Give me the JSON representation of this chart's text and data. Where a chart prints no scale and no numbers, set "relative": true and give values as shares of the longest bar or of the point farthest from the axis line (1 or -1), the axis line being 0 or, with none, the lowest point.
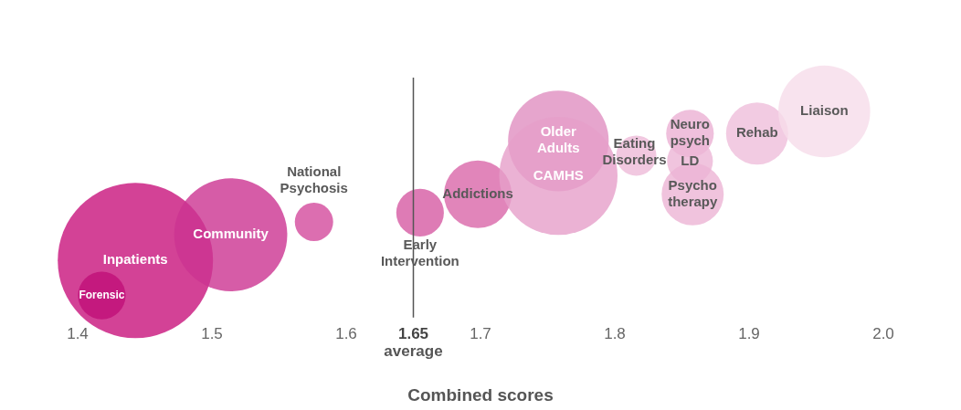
{
  "chart_data": {
    "type": "bubble",
    "xlabel": "Combined scores",
    "relative": true,
    "x": [
      1.443,
      1.418,
      1.514,
      1.576,
      1.655,
      1.698,
      1.758,
      1.758,
      1.816,
      1.856,
      1.856,
      1.858,
      1.906,
      1.956
    ],
    "values": [
      0.19,
      0,
      0.33,
      0.4,
      0.45,
      0.55,
      0.84,
      0.65,
      0.76,
      0.88,
      0.73,
      0.55,
      0.88,
      1
    ],
    "sizes": [
      1,
      0.094,
      0.53,
      0.061,
      0.094,
      0.19,
      0.42,
      0.58,
      0.067,
      0.094,
      0.087,
      0.16,
      0.16,
      0.35
    ],
    "colors": [
      "#c8137c",
      "#c00f78",
      "#cc3391",
      "#d34a9c",
      "#d65aa2",
      "#d967a9",
      "#e08ec0",
      "#e69fc9",
      "#eebad8",
      "#ebb0d3",
      "#ecb5d6",
      "#ecb4d5",
      "#efbedb",
      "#f6dcea"
    ],
    "xlim": [
      1.4,
      2.0
    ],
    "xticks": [
      1.4,
      1.5,
      1.6,
      1.65,
      1.7,
      1.8,
      1.9,
      {
        "value": 2.0,
        "label": "2.0"
      }
    ],
    "ref_lines": [
      {
        "axis": "x",
        "value": 1.65,
        "label": "average",
        "color": "#555555"
      }
    ],
    "grid": false,
    "legend": false,
    "annotations": [
      {
        "text": "Inpatients",
        "x": 1.443,
        "y": 0.19
      },
      {
        "text": "Forensic",
        "x": 1.418,
        "y": 0
      },
      {
        "text": "Community",
        "x": 1.514,
        "y": 0.33
      },
      {
        "text": "National Psychosis",
        "x": 1.576,
        "y": 0.4
      },
      {
        "text": "Early Intervention",
        "x": 1.655,
        "y": 0.45
      },
      {
        "text": "Addictions",
        "x": 1.698,
        "y": 0.55
      },
      {
        "text": "Older Adults",
        "x": 1.758,
        "y": 0.84
      },
      {
        "text": "CAMHS",
        "x": 1.758,
        "y": 0.65
      },
      {
        "text": "Eating Disorders",
        "x": 1.816,
        "y": 0.76
      },
      {
        "text": "Neuro psych",
        "x": 1.856,
        "y": 0.88
      },
      {
        "text": "LD",
        "x": 1.856,
        "y": 0.73
      },
      {
        "text": "Psycho therapy",
        "x": 1.858,
        "y": 0.55
      },
      {
        "text": "Rehab",
        "x": 1.906,
        "y": 0.88
      },
      {
        "text": "Liaison",
        "x": 1.956,
        "y": 1
      }
    ]
  }
}
